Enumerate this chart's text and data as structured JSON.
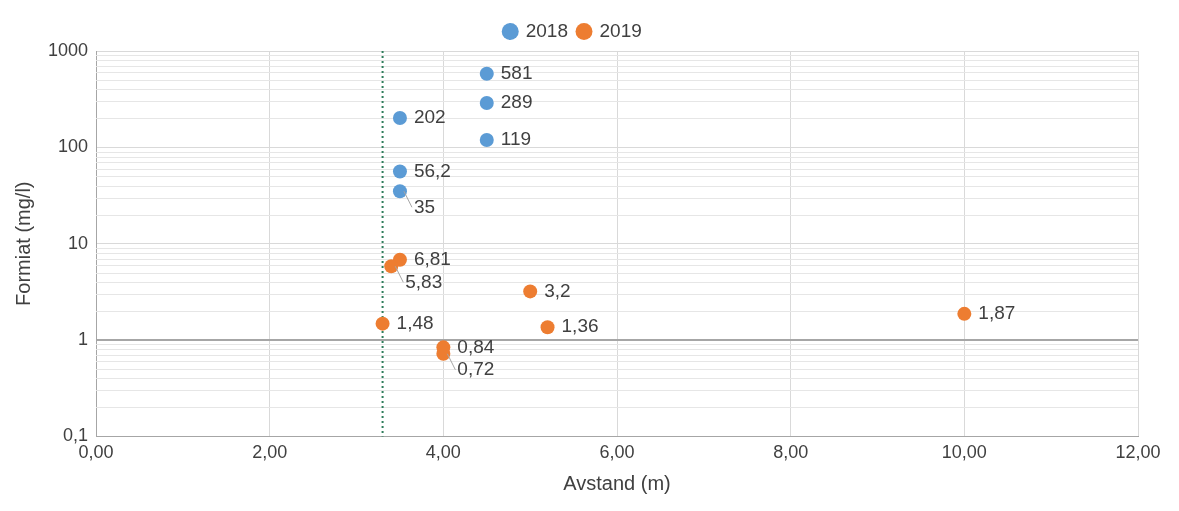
{
  "chart_data": {
    "type": "scatter",
    "xlabel": "Avstand (m)",
    "ylabel": "Formiat (mg/l)",
    "log": "y",
    "grid": true,
    "legend": "top",
    "marker": "circle",
    "xlim": [
      0,
      12
    ],
    "xticks": [
      {
        "value": 0,
        "label": "0,00"
      },
      {
        "value": 2,
        "label": "2,00"
      },
      {
        "value": 4,
        "label": "4,00"
      },
      {
        "value": 6,
        "label": "6,00"
      },
      {
        "value": 8,
        "label": "8,00"
      },
      {
        "value": 10,
        "label": "10,00"
      },
      {
        "value": 12,
        "label": "12,00"
      }
    ],
    "ylim": [
      0.1,
      1000
    ],
    "yticks": [
      {
        "value": 0.1,
        "label": "0,1"
      },
      1,
      10,
      100,
      1000
    ],
    "series": [
      {
        "name": "2018",
        "color": "#5b9bd5",
        "x": [
          4.5,
          4.5,
          4.5,
          3.5,
          3.5,
          3.5
        ],
        "values": [
          581,
          289,
          119,
          202,
          56.2,
          35
        ],
        "value_labels": [
          "581",
          "289",
          "119",
          "202",
          "56,2",
          "35"
        ]
      },
      {
        "name": "2019",
        "color": "#ed7d31",
        "x": [
          3.5,
          3.4,
          5.0,
          3.3,
          4.0,
          4.0,
          5.2,
          10.0
        ],
        "values": [
          6.81,
          5.83,
          3.2,
          1.48,
          0.84,
          0.72,
          1.36,
          1.87
        ],
        "value_labels": [
          "6,81",
          "5,83",
          "3,2",
          "1,48",
          "0,84",
          "0,72",
          "1,36",
          "1,87"
        ]
      }
    ],
    "ref_lines": [
      {
        "axis": "x",
        "value": 3.3,
        "color": "#2e7d5b",
        "line_style": "dotted"
      },
      {
        "axis": "y",
        "value": 1,
        "color": "#a6a6a6",
        "line_style": "solid"
      }
    ]
  }
}
